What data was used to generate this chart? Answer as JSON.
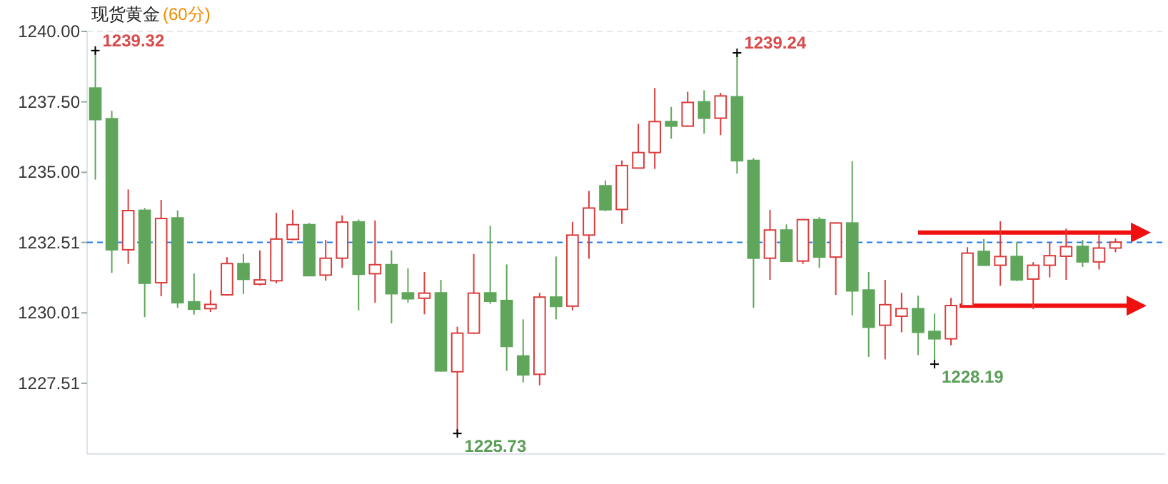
{
  "chart_data": {
    "type": "candlestick",
    "title": "现货黄金",
    "subtitle": "(60分)",
    "categories": [
      null,
      null,
      null,
      null,
      null,
      null,
      null,
      null,
      null,
      null,
      null,
      null,
      null,
      null,
      null,
      null,
      null,
      null,
      null,
      null,
      null,
      null,
      null,
      null,
      null,
      null,
      null,
      null,
      null,
      null,
      null,
      null,
      null,
      null,
      null,
      null,
      null,
      null,
      null,
      null,
      null,
      null,
      null,
      null,
      null,
      null,
      null,
      null,
      null,
      null,
      null,
      null,
      null,
      null,
      null,
      null,
      null,
      null,
      null,
      null,
      null,
      null,
      null
    ],
    "ohlc": [
      [
        1237.99,
        1239.32,
        1234.74,
        1236.87
      ],
      [
        1236.9,
        1237.18,
        1231.43,
        1232.25
      ],
      [
        1232.25,
        1234.39,
        1231.75,
        1233.64
      ],
      [
        1233.65,
        1233.73,
        1229.86,
        1231.06
      ],
      [
        1231.08,
        1234.02,
        1230.6,
        1233.36
      ],
      [
        1233.38,
        1233.65,
        1230.19,
        1230.37
      ],
      [
        1230.4,
        1231.41,
        1229.95,
        1230.14
      ],
      [
        1230.16,
        1230.82,
        1230.04,
        1230.31
      ],
      [
        1230.65,
        1231.99,
        1230.62,
        1231.76
      ],
      [
        1231.76,
        1232.1,
        1230.68,
        1231.2
      ],
      [
        1231.03,
        1232.23,
        1230.98,
        1231.18
      ],
      [
        1231.15,
        1233.56,
        1231.06,
        1232.63
      ],
      [
        1232.62,
        1233.67,
        1232.59,
        1233.14
      ],
      [
        1233.14,
        1233.2,
        1231.31,
        1231.33
      ],
      [
        1231.35,
        1232.6,
        1231.15,
        1231.95
      ],
      [
        1231.95,
        1233.47,
        1231.61,
        1233.23
      ],
      [
        1233.24,
        1233.32,
        1230.1,
        1231.38
      ],
      [
        1231.4,
        1233.29,
        1230.37,
        1231.72
      ],
      [
        1231.72,
        1232.23,
        1229.64,
        1230.69
      ],
      [
        1230.72,
        1231.59,
        1230.37,
        1230.51
      ],
      [
        1230.53,
        1231.46,
        1229.96,
        1230.71
      ],
      [
        1230.72,
        1231.18,
        1227.93,
        1227.95
      ],
      [
        1227.92,
        1229.52,
        1225.73,
        1229.29
      ],
      [
        1229.29,
        1232.1,
        1229.27,
        1230.71
      ],
      [
        1230.72,
        1233.1,
        1230.33,
        1230.42
      ],
      [
        1230.45,
        1231.73,
        1227.95,
        1228.82
      ],
      [
        1228.48,
        1229.78,
        1227.54,
        1227.81
      ],
      [
        1227.83,
        1230.72,
        1227.44,
        1230.57
      ],
      [
        1230.57,
        1232.01,
        1229.78,
        1230.24
      ],
      [
        1230.25,
        1233.24,
        1230.1,
        1232.77
      ],
      [
        1232.77,
        1234.34,
        1231.93,
        1233.73
      ],
      [
        1234.52,
        1234.71,
        1233.62,
        1233.67
      ],
      [
        1233.68,
        1235.42,
        1233.17,
        1235.24
      ],
      [
        1235.15,
        1236.72,
        1235.14,
        1235.7
      ],
      [
        1235.7,
        1237.99,
        1235.12,
        1236.8
      ],
      [
        1236.8,
        1237.32,
        1236.19,
        1236.64
      ],
      [
        1236.64,
        1237.86,
        1236.61,
        1237.48
      ],
      [
        1237.5,
        1237.91,
        1236.37,
        1236.92
      ],
      [
        1236.92,
        1237.82,
        1236.32,
        1237.71
      ],
      [
        1237.68,
        1239.24,
        1234.95,
        1235.41
      ],
      [
        1235.42,
        1235.5,
        1230.19,
        1231.95
      ],
      [
        1231.95,
        1233.67,
        1231.18,
        1232.95
      ],
      [
        1232.95,
        1233.15,
        1231.82,
        1231.84
      ],
      [
        1231.85,
        1233.34,
        1231.75,
        1233.32
      ],
      [
        1233.32,
        1233.41,
        1231.61,
        1231.99
      ],
      [
        1231.99,
        1233.22,
        1230.65,
        1233.2
      ],
      [
        1233.2,
        1235.39,
        1229.92,
        1230.79
      ],
      [
        1230.82,
        1231.46,
        1228.45,
        1229.5
      ],
      [
        1229.57,
        1231.18,
        1228.36,
        1230.3
      ],
      [
        1229.89,
        1230.72,
        1229.32,
        1230.16
      ],
      [
        1230.16,
        1230.62,
        1228.51,
        1229.32
      ],
      [
        1229.35,
        1229.98,
        1228.19,
        1229.09
      ],
      [
        1229.09,
        1230.54,
        1228.86,
        1230.27
      ],
      [
        1230.27,
        1232.34,
        1230.26,
        1232.13
      ],
      [
        1232.19,
        1232.63,
        1231.69,
        1231.7
      ],
      [
        1231.7,
        1233.26,
        1230.97,
        1232.01
      ],
      [
        1232.01,
        1232.52,
        1231.14,
        1231.18
      ],
      [
        1231.21,
        1231.81,
        1230.14,
        1231.7
      ],
      [
        1231.7,
        1232.52,
        1231.27,
        1232.04
      ],
      [
        1232.02,
        1233.0,
        1231.18,
        1232.36
      ],
      [
        1232.37,
        1232.6,
        1231.64,
        1231.82
      ],
      [
        1231.82,
        1232.85,
        1231.55,
        1232.31
      ],
      [
        1232.31,
        1232.65,
        1232.16,
        1232.52
      ]
    ],
    "ylim": [
      1225.0,
      1240.0
    ],
    "yticks": [
      {
        "value": 1227.51,
        "label": "1227.51"
      },
      {
        "value": 1230.01,
        "label": "1230.01"
      },
      {
        "value": 1232.51,
        "label": "1232.51"
      },
      {
        "value": 1235.0,
        "label": "1235.00"
      },
      {
        "value": 1237.5,
        "label": "1237.50"
      },
      {
        "value": 1240.0,
        "label": "1240.00"
      }
    ],
    "ref_lines": [
      {
        "axis": "y",
        "value": 1232.51,
        "color": "#1e7be6",
        "line_style": "dashed"
      }
    ],
    "annotations": [
      "1239.32",
      "1239.24",
      "1225.73",
      "1228.19"
    ]
  }
}
